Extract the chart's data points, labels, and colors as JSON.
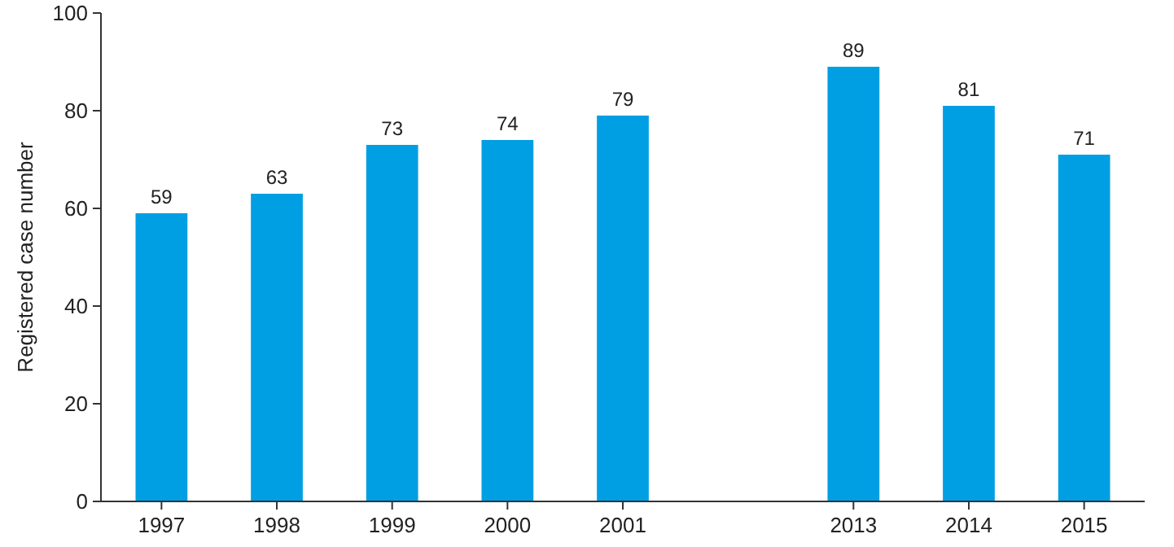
{
  "chart_data": {
    "type": "bar",
    "ylabel": "Registered case number",
    "categories": [
      "1997",
      "1998",
      "1999",
      "2000",
      "2001",
      null,
      "2013",
      "2014",
      "2015"
    ],
    "values": [
      59,
      63,
      73,
      74,
      79,
      null,
      89,
      81,
      71
    ],
    "color": "#009fe3",
    "ylim": [
      0,
      100
    ],
    "yticks": [
      0,
      20,
      40,
      60,
      80,
      100
    ],
    "data_labels": true,
    "grid": false
  }
}
